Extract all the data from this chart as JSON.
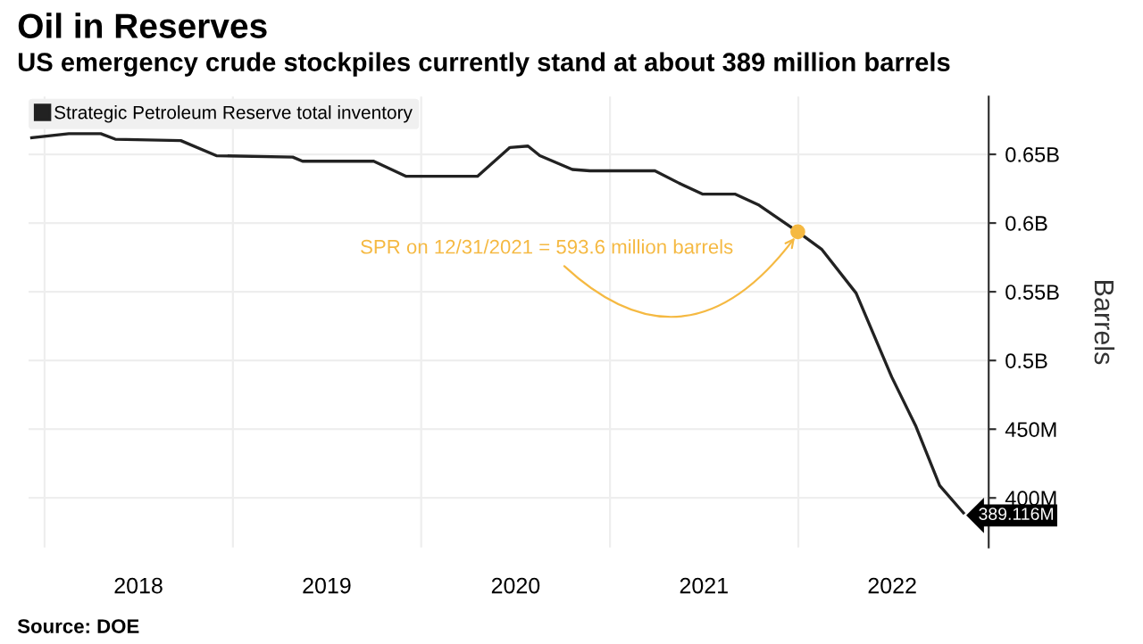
{
  "chart_data": {
    "type": "line",
    "title": "Oil in Reserves",
    "subtitle": "US emergency crude stockpiles currently stand at about 389 million barrels",
    "ylabel": "Barrels",
    "annotations": [
      {
        "text": "SPR on 12/31/2021 = 593.6 million barrels",
        "x": "2021-12-31",
        "y": 593600000
      },
      "Source: DOE"
    ],
    "series": [
      {
        "name": "Strategic Petroleum Reserve total inventory",
        "color": "#222222",
        "x": [
          "2017-12-07",
          "2018-02-17",
          "2018-04-20",
          "2018-05-18",
          "2018-09-22",
          "2018-11-30",
          "2019-04-27",
          "2019-05-16",
          "2019-10-01",
          "2019-12-03",
          "2020-04-19",
          "2020-06-21",
          "2020-07-26",
          "2020-08-18",
          "2020-10-20",
          "2020-11-23",
          "2021-03-29",
          "2021-05-15",
          "2021-06-30",
          "2021-09-01",
          "2021-10-17",
          "2021-12-31",
          "2022-02-15",
          "2022-04-23",
          "2022-07-01",
          "2022-08-17",
          "2022-10-02",
          "2022-11-17"
        ],
        "values": [
          662000000,
          665000000,
          665000000,
          661000000,
          660000000,
          649000000,
          648000000,
          645000000,
          645000000,
          634000000,
          634000000,
          655000000,
          656000000,
          649000000,
          639000000,
          638000000,
          638000000,
          629000000,
          621000000,
          621000000,
          613000000,
          593600000,
          581000000,
          549000000,
          488000000,
          452000000,
          409000000,
          389116000
        ],
        "value_labels": [
          null,
          null,
          null,
          null,
          null,
          null,
          null,
          null,
          null,
          null,
          null,
          null,
          null,
          null,
          null,
          null,
          null,
          null,
          null,
          null,
          null,
          null,
          null,
          null,
          null,
          null,
          null,
          "389.116M"
        ]
      }
    ],
    "xlim": [
      "2017-12-01",
      "2023-01-05"
    ],
    "xticks": [
      {
        "value": "2018-01-01",
        "label": null
      },
      {
        "value": "2018-07-02",
        "label": "2018"
      },
      {
        "value": "2019-01-01",
        "label": null
      },
      {
        "value": "2019-07-02",
        "label": "2019"
      },
      {
        "value": "2020-01-01",
        "label": null
      },
      {
        "value": "2020-07-02",
        "label": "2020"
      },
      {
        "value": "2021-01-01",
        "label": null
      },
      {
        "value": "2021-07-02",
        "label": "2021"
      },
      {
        "value": "2022-01-01",
        "label": null
      },
      {
        "value": "2022-07-02",
        "label": "2022"
      }
    ],
    "ylim": [
      364000000,
      692000000
    ],
    "yticks": [
      {
        "value": 400000000,
        "label": "400M"
      },
      {
        "value": 450000000,
        "label": "450M"
      },
      {
        "value": 500000000,
        "label": "0.5B"
      },
      {
        "value": 550000000,
        "label": "0.55B"
      },
      {
        "value": 600000000,
        "label": "0.6B"
      },
      {
        "value": 650000000,
        "label": "0.65B"
      }
    ],
    "grid": true,
    "legend": "top left",
    "line_style": "solid"
  }
}
